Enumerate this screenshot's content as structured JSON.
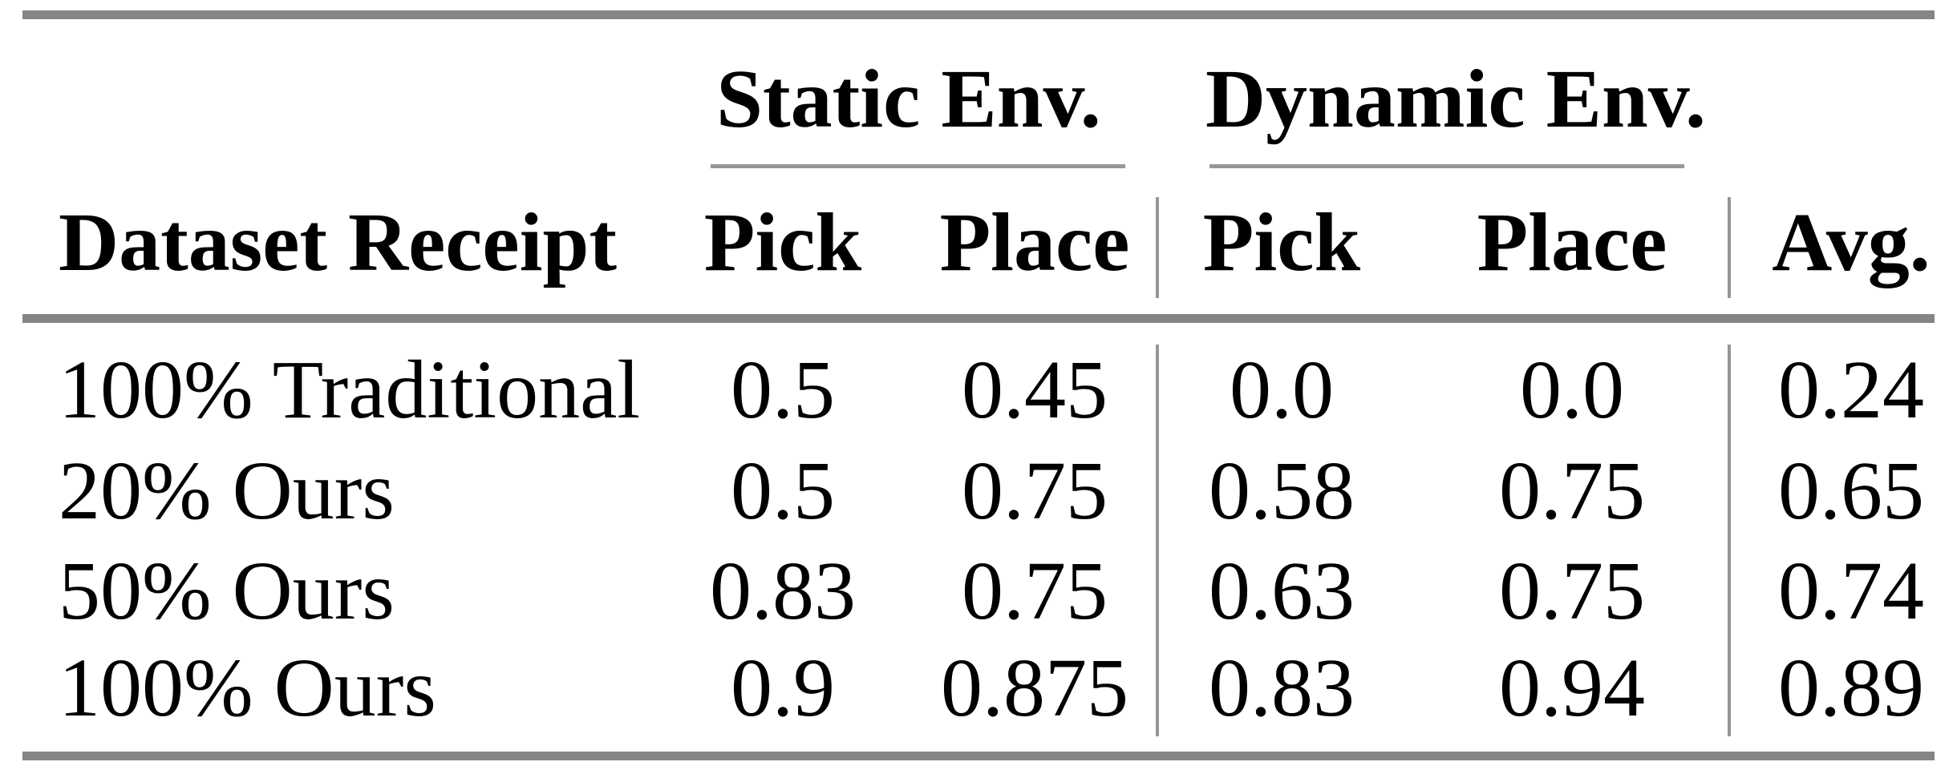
{
  "colors": {
    "rule_gray": "#858585",
    "thin_rule_gray": "#969696",
    "text": "#000000",
    "background": "#ffffff"
  },
  "table": {
    "group_headers": [
      {
        "label": "Static Env."
      },
      {
        "label": "Dynamic Env."
      }
    ],
    "header": {
      "row_label": "Dataset Receipt",
      "columns": [
        "Pick",
        "Place",
        "Pick",
        "Place"
      ],
      "avg_label": "Avg."
    },
    "rows": [
      {
        "label": "100% Traditional",
        "values": [
          "0.5",
          "0.45",
          "0.0",
          "0.0",
          "0.24"
        ]
      },
      {
        "label": "20% Ours",
        "values": [
          "0.5",
          "0.75",
          "0.58",
          "0.75",
          "0.65"
        ]
      },
      {
        "label": "50% Ours",
        "values": [
          "0.83",
          "0.75",
          "0.63",
          "0.75",
          "0.74"
        ]
      },
      {
        "label": "100% Ours",
        "values": [
          "0.9",
          "0.875",
          "0.83",
          "0.94",
          "0.89"
        ]
      }
    ]
  }
}
